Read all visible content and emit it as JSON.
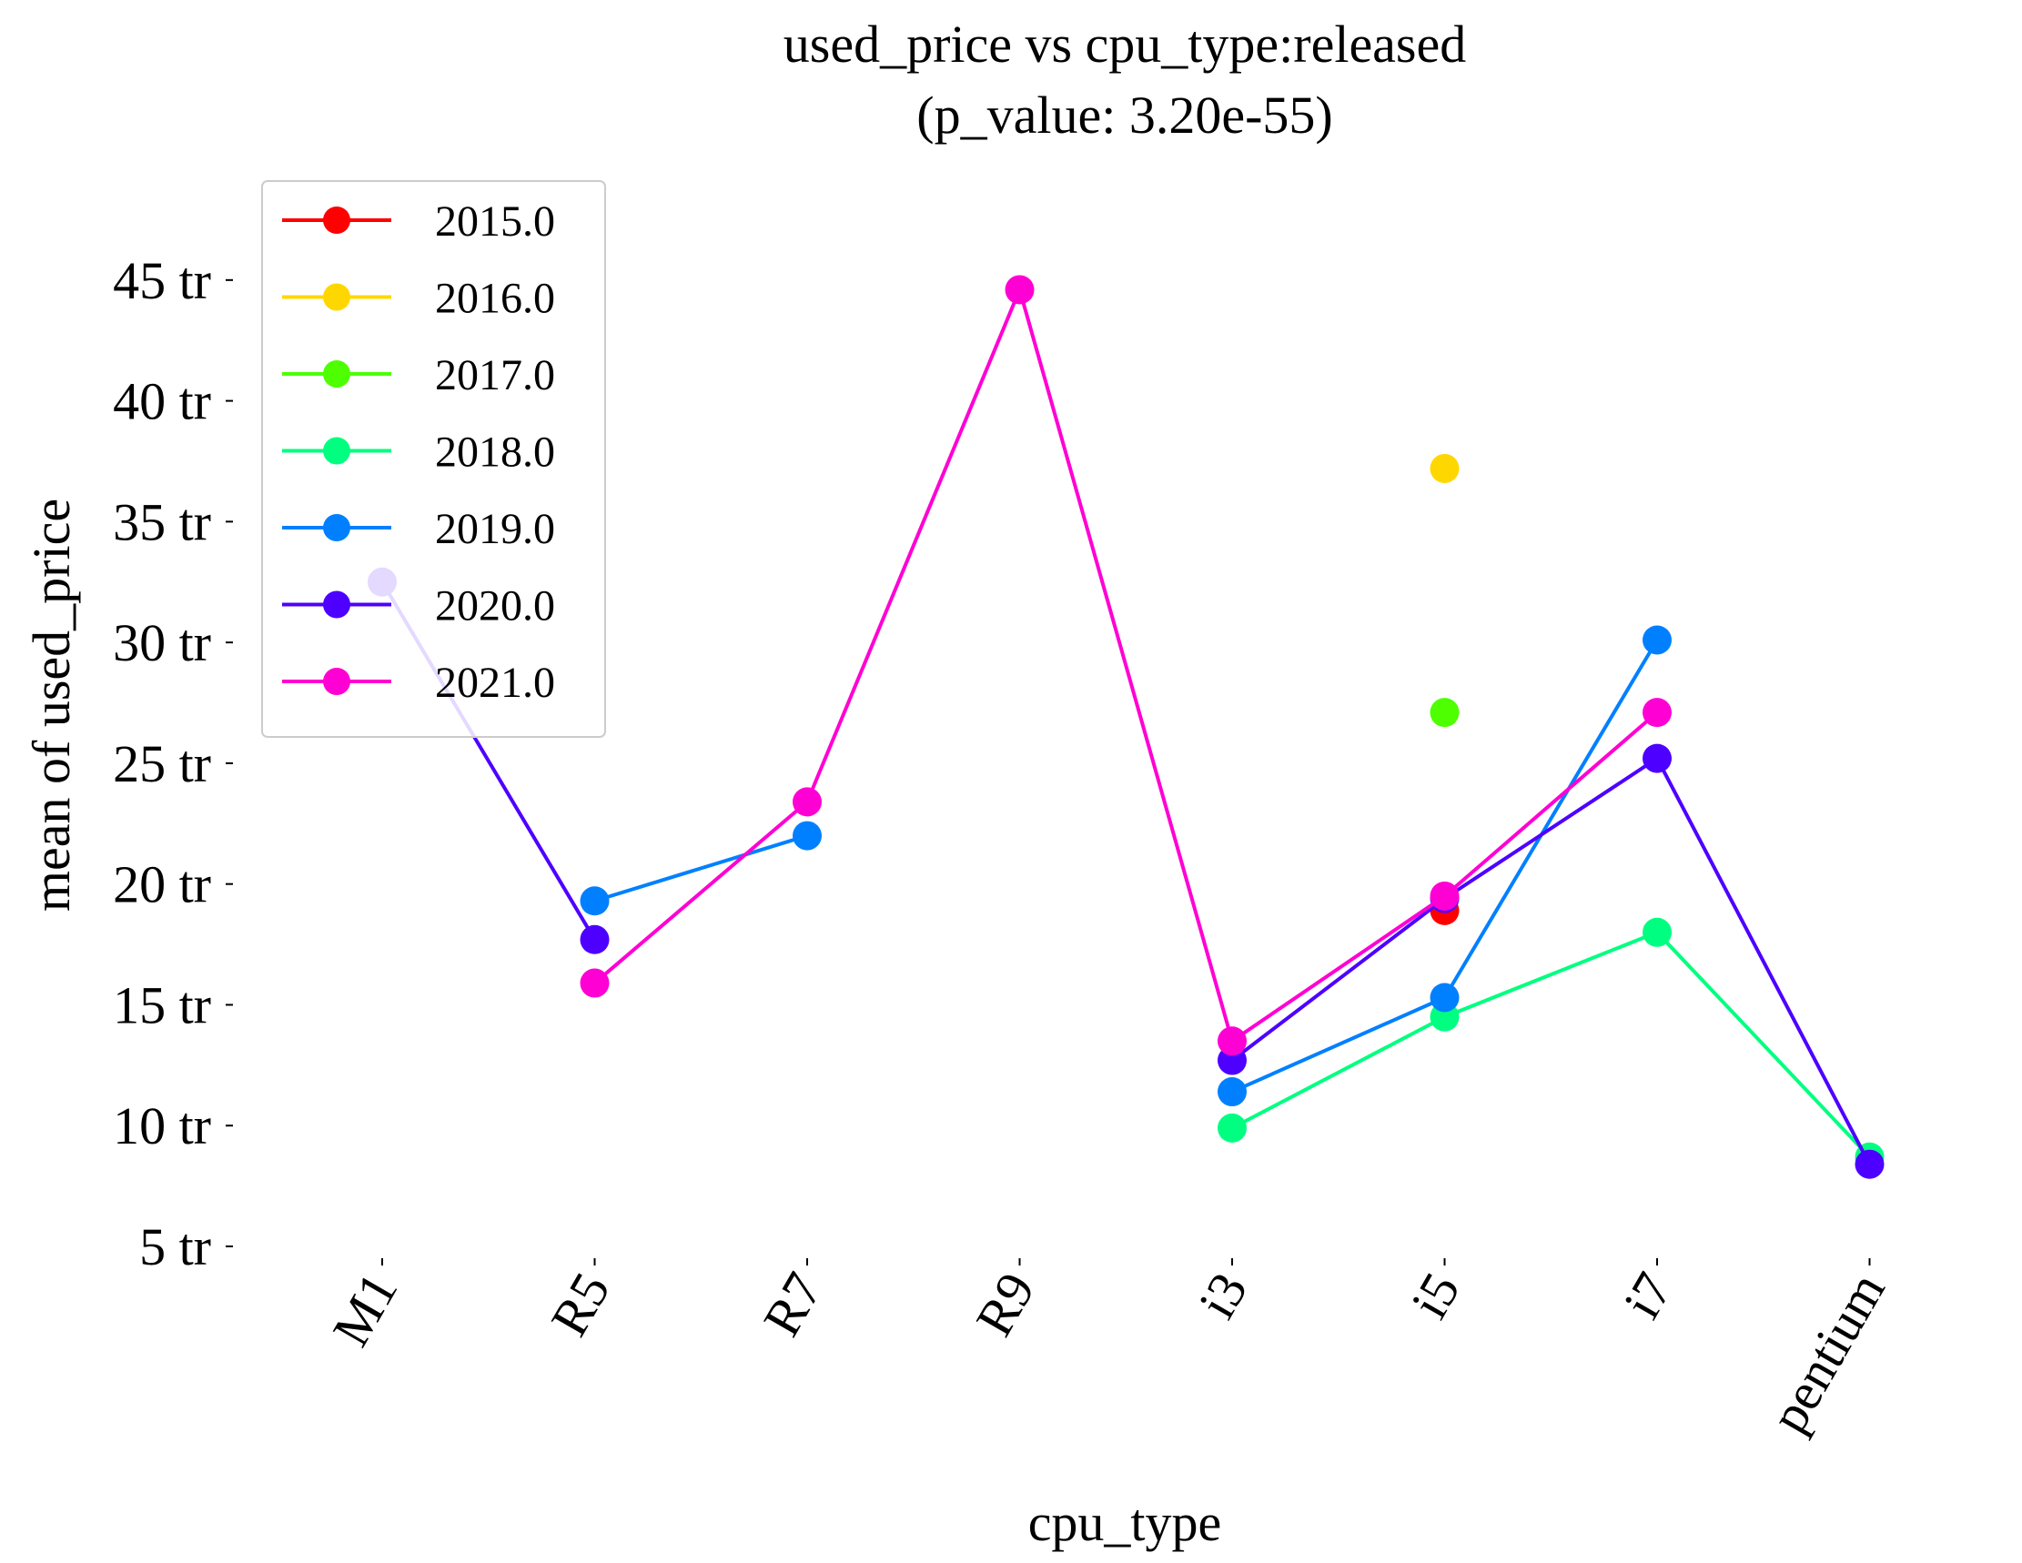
{
  "chart_data": {
    "type": "line",
    "title": "used_price vs cpu_type:released",
    "subtitle": "(p_value: 3.20e-55)",
    "xlabel": "cpu_type",
    "ylabel": "mean of used_price",
    "categories": [
      "M1",
      "R5",
      "R7",
      "R9",
      "i3",
      "i5",
      "i7",
      "pentium"
    ],
    "ylim": [
      5,
      46.5
    ],
    "yticks": [
      5,
      10,
      15,
      20,
      25,
      30,
      35,
      40,
      45
    ],
    "ytick_labels": [
      "5 tr",
      "10 tr",
      "15 tr",
      "20 tr",
      "25 tr",
      "30 tr",
      "35 tr",
      "40 tr",
      "45 tr"
    ],
    "grid": false,
    "legend_position": "top-left",
    "series": [
      {
        "name": "2015.0",
        "color": "#ff0000",
        "values": [
          null,
          null,
          null,
          null,
          null,
          18.9,
          null,
          null
        ]
      },
      {
        "name": "2016.0",
        "color": "#ffd700",
        "values": [
          null,
          null,
          null,
          null,
          null,
          37.2,
          null,
          null
        ]
      },
      {
        "name": "2017.0",
        "color": "#4dff00",
        "values": [
          null,
          null,
          null,
          null,
          null,
          27.1,
          null,
          null
        ]
      },
      {
        "name": "2018.0",
        "color": "#00ff80",
        "values": [
          null,
          null,
          null,
          null,
          9.9,
          14.5,
          18.0,
          8.7
        ]
      },
      {
        "name": "2019.0",
        "color": "#0080ff",
        "values": [
          null,
          19.3,
          22.0,
          null,
          11.4,
          15.3,
          30.1,
          null
        ]
      },
      {
        "name": "2020.0",
        "color": "#4d00ff",
        "values": [
          32.5,
          17.7,
          null,
          null,
          12.7,
          19.4,
          25.2,
          8.4
        ]
      },
      {
        "name": "2021.0",
        "color": "#ff00d4",
        "values": [
          null,
          15.9,
          23.4,
          44.6,
          13.5,
          19.5,
          27.1,
          null
        ]
      }
    ]
  }
}
